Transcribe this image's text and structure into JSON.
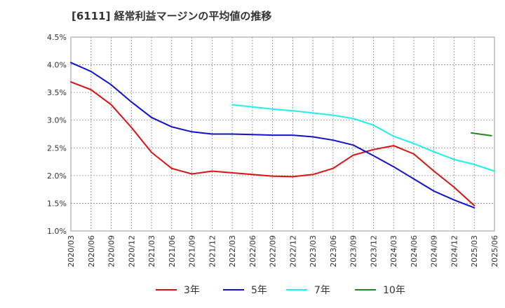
{
  "chart_data": {
    "type": "line",
    "title": "[6111]  経常利益マージンの平均値の推移",
    "xlabel": "",
    "ylabel": "",
    "x_ticks": [
      "2020/03",
      "2020/06",
      "2020/09",
      "2020/12",
      "2021/03",
      "2021/06",
      "2021/09",
      "2021/12",
      "2022/03",
      "2022/06",
      "2022/09",
      "2022/12",
      "2023/03",
      "2023/06",
      "2023/09",
      "2023/12",
      "2024/03",
      "2024/06",
      "2024/09",
      "2024/12",
      "2025/03",
      "2025/06"
    ],
    "y_ticks": [
      "1.0%",
      "1.5%",
      "2.0%",
      "2.5%",
      "3.0%",
      "3.5%",
      "4.0%",
      "4.5%"
    ],
    "ylim": [
      1.0,
      4.5
    ],
    "grid": true,
    "legend_position": "bottom",
    "series": [
      {
        "name": "3年",
        "color": "#dd1111",
        "start": 0,
        "values": [
          3.69,
          3.55,
          3.28,
          2.87,
          2.42,
          2.13,
          2.03,
          2.08,
          2.05,
          2.02,
          1.99,
          1.98,
          2.02,
          2.13,
          2.37,
          2.47,
          2.54,
          2.39,
          2.08,
          1.79,
          1.46
        ]
      },
      {
        "name": "5年",
        "color": "#1111cc",
        "start": 0,
        "values": [
          4.04,
          3.88,
          3.64,
          3.33,
          3.05,
          2.88,
          2.79,
          2.75,
          2.75,
          2.74,
          2.73,
          2.73,
          2.7,
          2.64,
          2.55,
          2.36,
          2.16,
          1.94,
          1.72,
          1.56,
          1.42
        ]
      },
      {
        "name": "7年",
        "color": "#22eeee",
        "start": 8,
        "values": [
          3.28,
          3.24,
          3.2,
          3.17,
          3.13,
          3.09,
          3.03,
          2.91,
          2.71,
          2.58,
          2.43,
          2.29,
          2.2,
          2.08
        ]
      },
      {
        "name": "10年",
        "color": "#228822",
        "start": 19.85,
        "values": [
          2.77,
          2.72
        ]
      }
    ]
  }
}
